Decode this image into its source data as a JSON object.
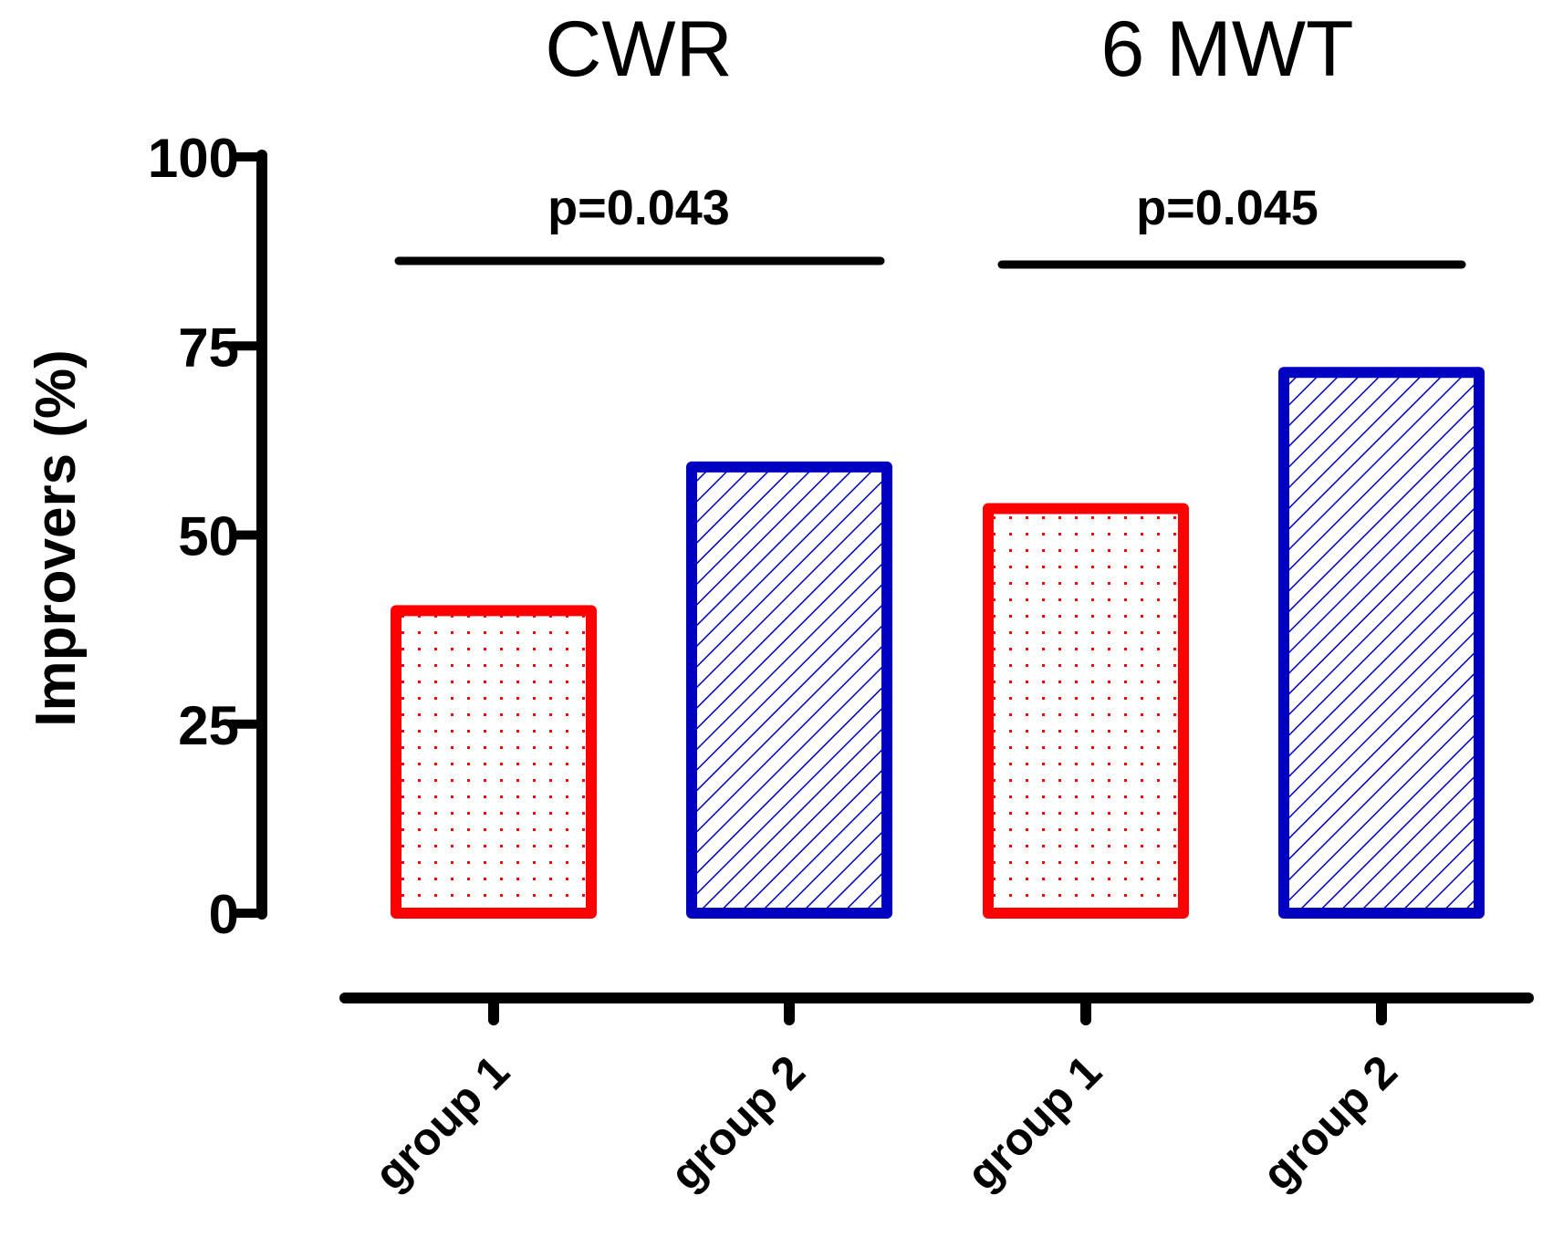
{
  "chart_data": {
    "type": "bar",
    "ylabel": "Improvers (%)",
    "xlabel": "",
    "ylim": [
      0,
      100
    ],
    "yticks": [
      "0",
      "25",
      "50",
      "75",
      "100"
    ],
    "grid": false,
    "panels": [
      {
        "title": "CWR",
        "p_value": "p=0.043",
        "categories": [
          "group 1",
          "group 2"
        ],
        "values": [
          40,
          59
        ]
      },
      {
        "title": "6 MWT",
        "p_value": "p=0.045",
        "categories": [
          "group 1",
          "group 2"
        ],
        "values": [
          53.5,
          71.5
        ]
      }
    ],
    "colors": {
      "group 1": "#ff0000",
      "group 2": "#0000c0"
    }
  }
}
